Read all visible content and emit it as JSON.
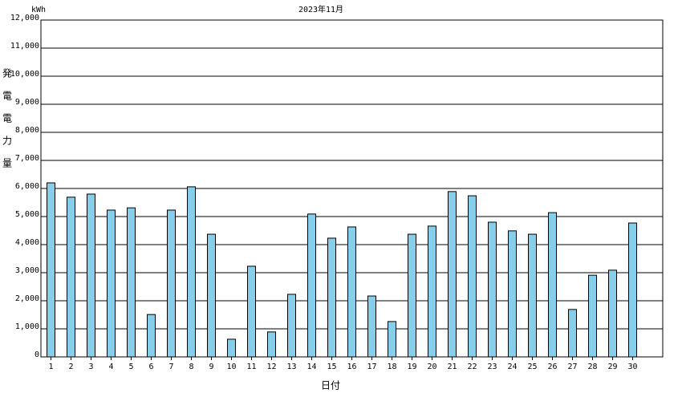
{
  "chart_data": {
    "type": "bar",
    "title": "2023年11月",
    "unit": "kWh",
    "y_label": "発電電力量",
    "x_label": "日付",
    "categories": [
      "1",
      "2",
      "3",
      "4",
      "5",
      "6",
      "7",
      "8",
      "9",
      "10",
      "11",
      "12",
      "13",
      "14",
      "15",
      "16",
      "17",
      "18",
      "19",
      "20",
      "21",
      "22",
      "23",
      "24",
      "25",
      "26",
      "27",
      "28",
      "29",
      "30"
    ],
    "values": [
      6200,
      5690,
      5800,
      5230,
      5310,
      1510,
      5230,
      6060,
      4370,
      630,
      3230,
      890,
      2230,
      5090,
      4230,
      4630,
      2170,
      1260,
      4370,
      4660,
      5890,
      5740,
      4800,
      4490,
      4370,
      5140,
      1690,
      2910,
      3090,
      4770
    ],
    "color": "#87ceeb",
    "ylim": [
      0,
      12000
    ],
    "yticks": [
      0,
      {
        "value": 1000,
        "label": "1,000"
      },
      {
        "value": 2000,
        "label": "2,000"
      },
      {
        "value": 3000,
        "label": "3,000"
      },
      {
        "value": 4000,
        "label": "4,000"
      },
      {
        "value": 5000,
        "label": "5,000"
      },
      {
        "value": 6000,
        "label": "6,000"
      },
      {
        "value": 7000,
        "label": "7,000"
      },
      {
        "value": 8000,
        "label": "8,000"
      },
      {
        "value": 9000,
        "label": "9,000"
      },
      {
        "value": 10000,
        "label": "10,000"
      },
      {
        "value": 11000,
        "label": "11,000"
      },
      {
        "value": 12000,
        "label": "12,000"
      }
    ],
    "grid": true
  }
}
